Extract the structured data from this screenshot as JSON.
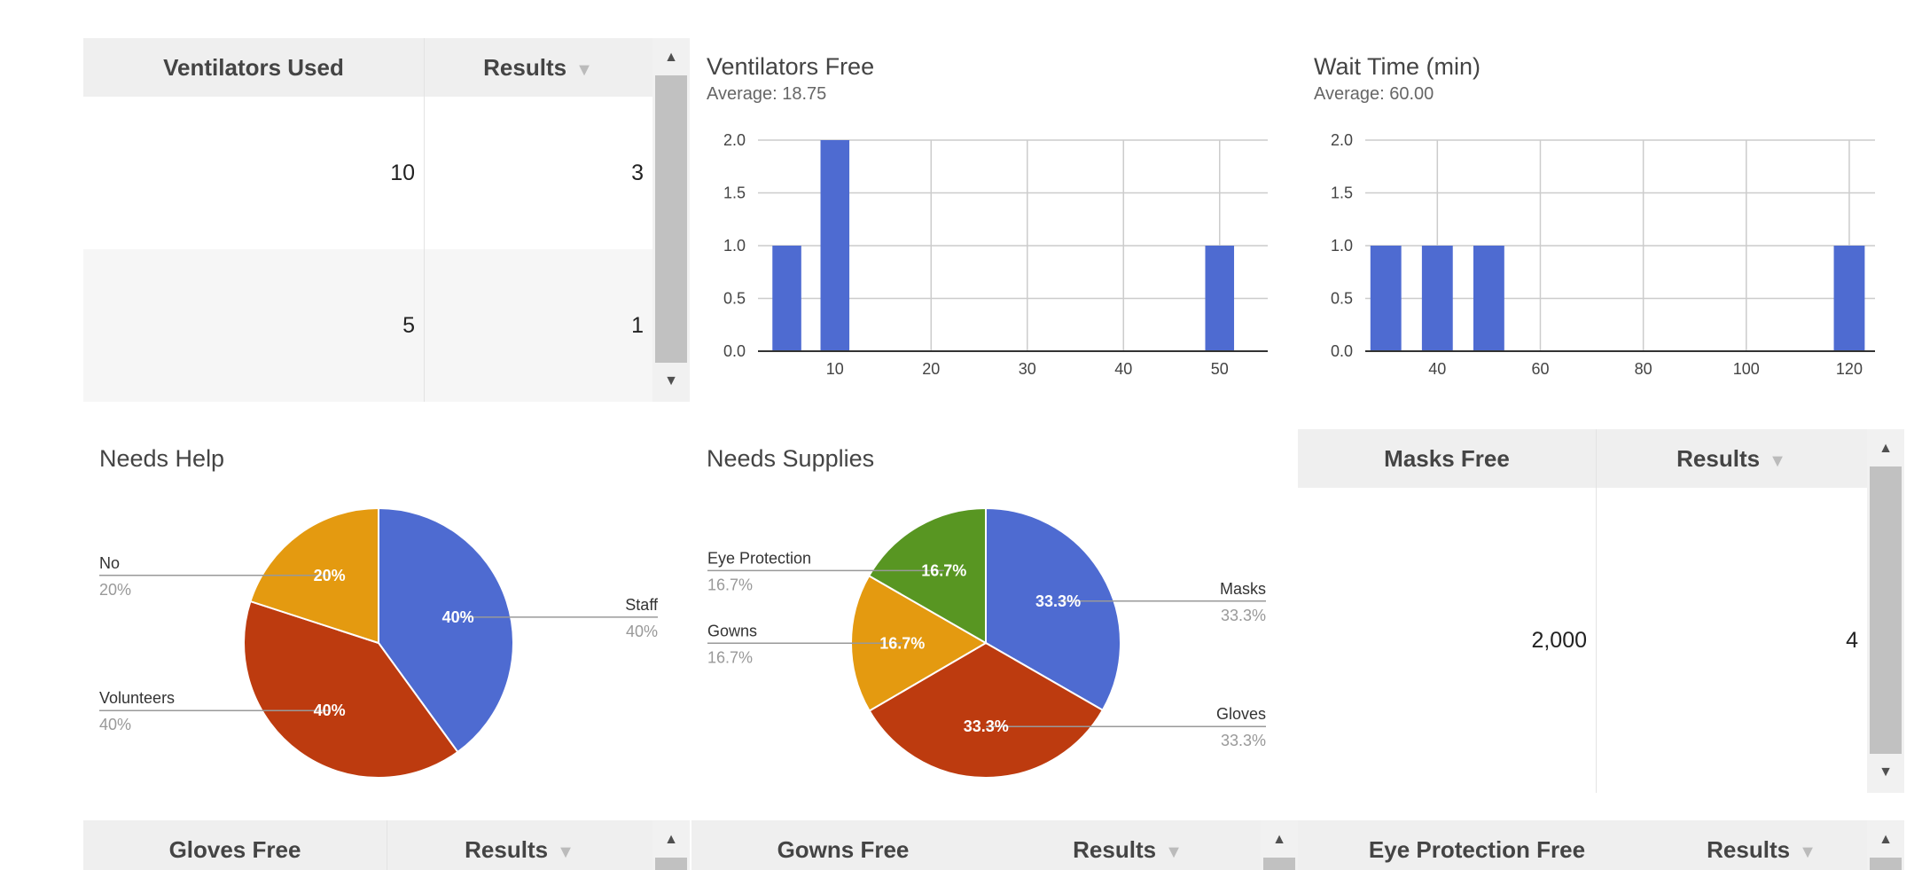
{
  "tables": {
    "ventilators_used": {
      "headers": [
        "Ventilators Used",
        "Results"
      ],
      "rows": [
        [
          "10",
          "3"
        ],
        [
          "5",
          "1"
        ]
      ]
    },
    "masks_free": {
      "headers": [
        "Masks Free",
        "Results"
      ],
      "rows": [
        [
          "2,000",
          "4"
        ]
      ]
    },
    "gloves_free": {
      "headers": [
        "Gloves Free",
        "Results"
      ]
    },
    "gowns_free": {
      "headers": [
        "Gowns Free",
        "Results"
      ]
    },
    "eye_protection_free": {
      "headers": [
        "Eye Protection Free",
        "Results"
      ]
    }
  },
  "sort_arrow": "▼",
  "chart_data": [
    {
      "type": "bar",
      "title": "Ventilators Free",
      "subtitle": "Average: 18.75",
      "x": [
        5,
        10,
        50
      ],
      "values": [
        1,
        2,
        1
      ],
      "xticks": [
        "10",
        "20",
        "30",
        "40",
        "50"
      ],
      "xlim": [
        2,
        55
      ],
      "ylim": [
        0,
        2
      ],
      "yticks": [
        "0.0",
        "0.5",
        "1.0",
        "1.5",
        "2.0"
      ],
      "bin_width": 3,
      "grid": true,
      "color": "#4e6bd1"
    },
    {
      "type": "bar",
      "title": "Wait Time (min)",
      "subtitle": "Average: 60.00",
      "x": [
        30,
        40,
        50,
        120
      ],
      "values": [
        1,
        1,
        1,
        1
      ],
      "xticks": [
        "40",
        "60",
        "80",
        "100",
        "120"
      ],
      "xlim": [
        26,
        125
      ],
      "ylim": [
        0,
        2
      ],
      "yticks": [
        "0.0",
        "0.5",
        "1.0",
        "1.5",
        "2.0"
      ],
      "bin_width": 6,
      "grid": true,
      "color": "#4e6bd1"
    },
    {
      "type": "pie",
      "title": "Needs Help",
      "slices": [
        {
          "label": "Staff",
          "value": 40,
          "pct": "40%",
          "color": "#4e6bd1"
        },
        {
          "label": "Volunteers",
          "value": 40,
          "pct": "40%",
          "color": "#bd3b0f"
        },
        {
          "label": "No",
          "value": 20,
          "pct": "20%",
          "color": "#e49a10"
        }
      ]
    },
    {
      "type": "pie",
      "title": "Needs Supplies",
      "slices": [
        {
          "label": "Masks",
          "value": 33.3,
          "pct": "33.3%",
          "color": "#4e6bd1"
        },
        {
          "label": "Gloves",
          "value": 33.3,
          "pct": "33.3%",
          "color": "#bd3b0f"
        },
        {
          "label": "Gowns",
          "value": 16.7,
          "pct": "16.7%",
          "color": "#e49a10"
        },
        {
          "label": "Eye Protection",
          "value": 16.7,
          "pct": "16.7%",
          "color": "#589622"
        }
      ]
    }
  ]
}
